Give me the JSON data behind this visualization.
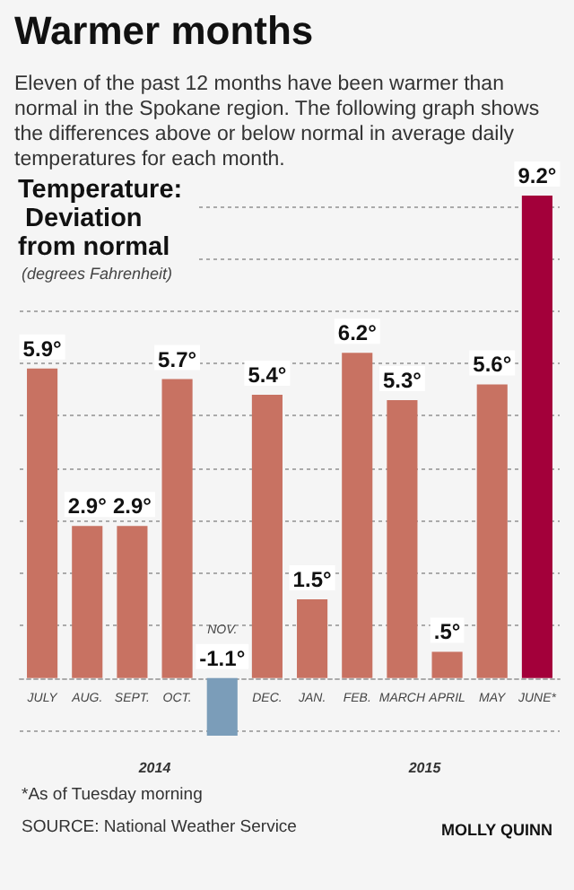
{
  "chart_data": {
    "type": "bar",
    "title": "Warmer months",
    "subtitle": "Eleven of the past 12 months have been warmer than normal in the Spokane region. The following graph shows the differences above or below normal in average daily temperatures for each month.",
    "ylabel": "Temperature: Deviation from normal",
    "categories": [
      "JULY",
      "AUG.",
      "SEPT.",
      "OCT.",
      "NOV.",
      "DEC.",
      "JAN.",
      "FEB.",
      "MARCH",
      "APRIL",
      "MAY",
      "JUNE*"
    ],
    "values": [
      5.9,
      2.9,
      2.9,
      5.7,
      -1.1,
      5.4,
      1.5,
      6.2,
      5.3,
      0.5,
      5.6,
      9.2
    ],
    "value_labels": [
      "5.9°",
      "2.9°",
      "2.9°",
      "5.7°",
      "-1.1°",
      "5.4°",
      "1.5°",
      "6.2°",
      "5.3°",
      ".5°",
      "5.6°",
      "9.2°"
    ],
    "colors": [
      "#c87262",
      "#c87262",
      "#c87262",
      "#c87262",
      "#7b9db9",
      "#c87262",
      "#c87262",
      "#c87262",
      "#c87262",
      "#c87262",
      "#c87262",
      "#a3003a"
    ],
    "yticks": [
      {
        "value": -1,
        "label": null
      },
      {
        "value": 0,
        "label": null
      },
      {
        "value": 1,
        "label": null
      },
      {
        "value": 2,
        "label": null
      },
      {
        "value": 3,
        "label": null
      },
      {
        "value": 4,
        "label": null
      },
      {
        "value": 5,
        "label": null
      },
      {
        "value": 6,
        "label": null
      },
      {
        "value": 7,
        "label": null
      },
      {
        "value": 8,
        "label": null
      },
      {
        "value": 9,
        "label": null
      }
    ],
    "grid": "y",
    "annotations": [
      "(degrees Fahrenheit)",
      "2014",
      "2015",
      "*As of Tuesday morning",
      "SOURCE: National Weather Service",
      "MOLLY QUINN"
    ]
  }
}
